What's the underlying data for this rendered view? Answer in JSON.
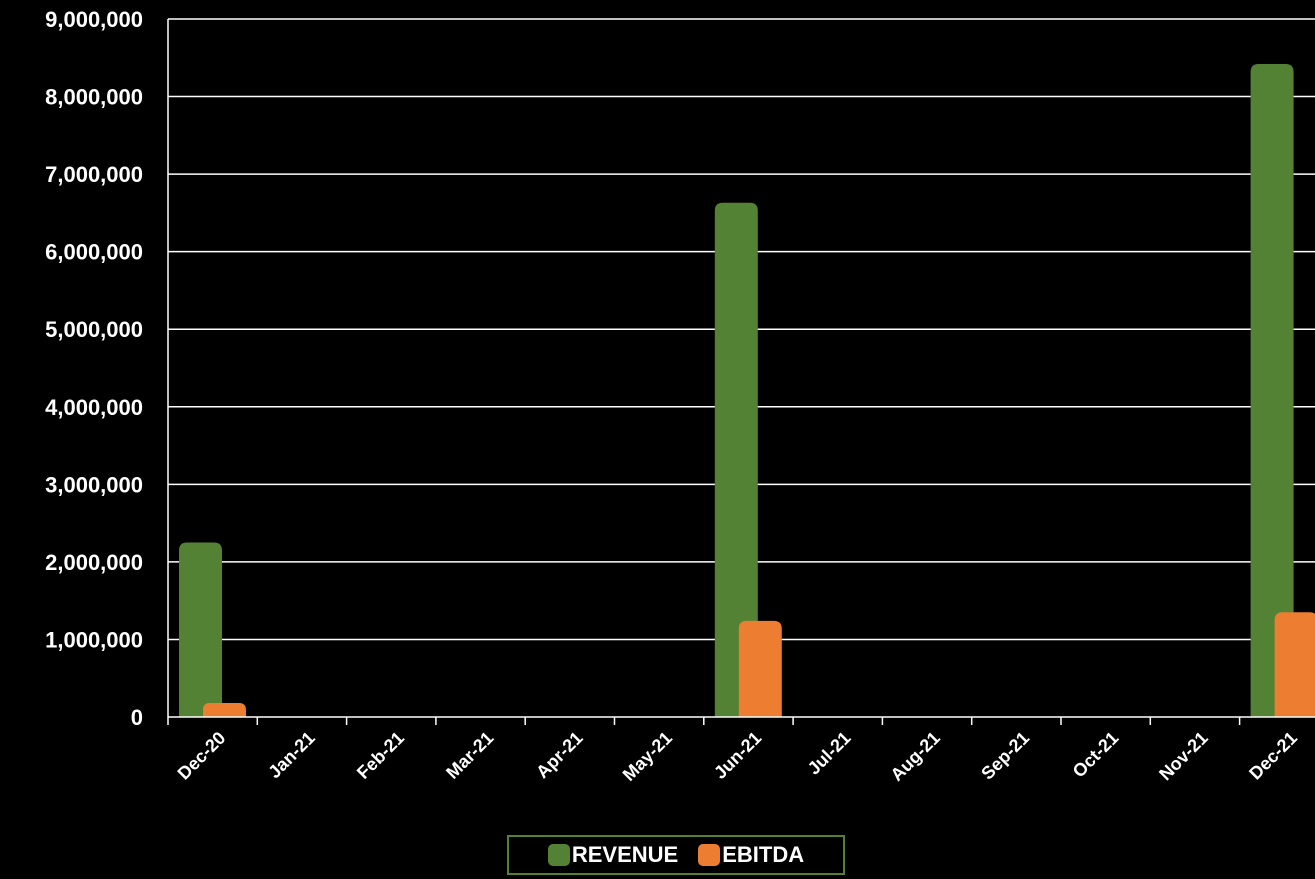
{
  "chart_data": {
    "type": "bar",
    "title": "",
    "xlabel": "",
    "ylabel": "",
    "categories": [
      "Dec-20",
      "Jan-21",
      "Feb-21",
      "Mar-21",
      "Apr-21",
      "May-21",
      "Jun-21",
      "Jul-21",
      "Aug-21",
      "Sep-21",
      "Oct-21",
      "Nov-21",
      "Dec-21"
    ],
    "series": [
      {
        "name": "REVENUE",
        "color": "#548235",
        "values": [
          2250000,
          null,
          null,
          null,
          null,
          null,
          6630000,
          null,
          null,
          null,
          null,
          null,
          8420000
        ]
      },
      {
        "name": "EBITDA",
        "color": "#ED7D31",
        "values": [
          180000,
          null,
          null,
          null,
          null,
          null,
          1240000,
          null,
          null,
          null,
          null,
          null,
          1350000
        ]
      }
    ],
    "ylim": [
      0,
      9000000
    ],
    "yticks": [
      "0",
      "1,000,000",
      "2,000,000",
      "3,000,000",
      "4,000,000",
      "5,000,000",
      "6,000,000",
      "7,000,000",
      "8,000,000",
      "9,000,000"
    ],
    "grid": true,
    "legend_position": "bottom-center",
    "background": "#000000"
  }
}
